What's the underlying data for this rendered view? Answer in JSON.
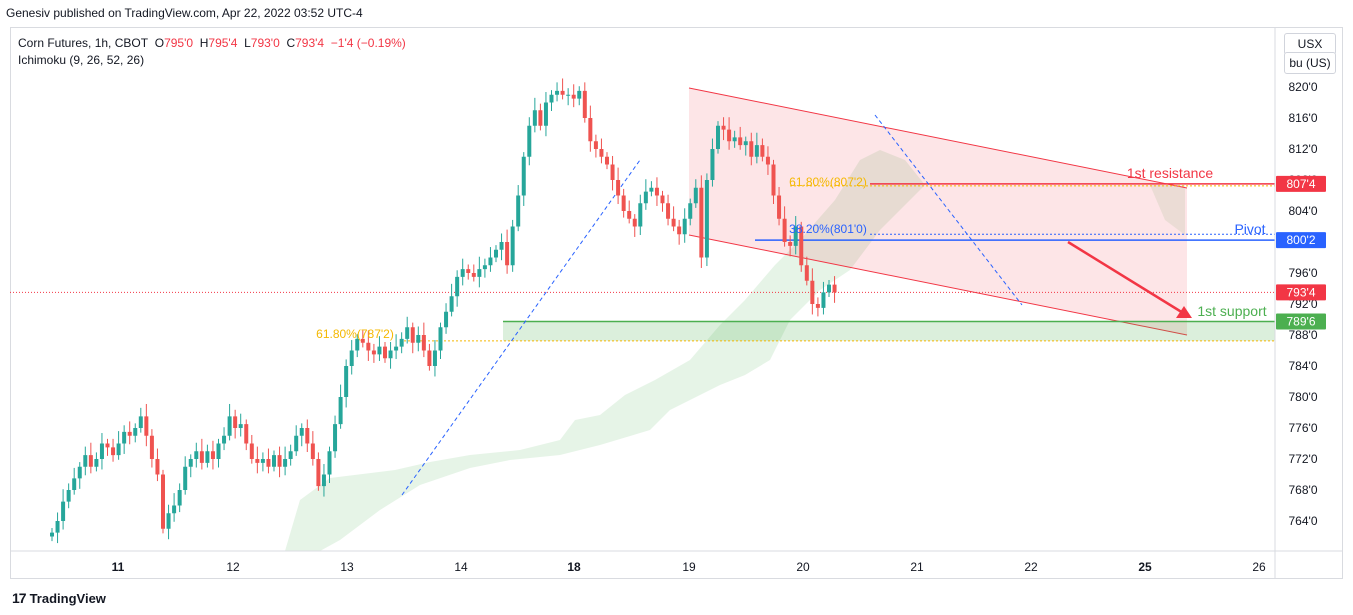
{
  "header": {
    "published": "Genesiv published on TradingView.com, Apr 22, 2022 03:52 UTC-4"
  },
  "legend": {
    "symbol": "Corn Futures, 1h, CBOT",
    "open_label": "O",
    "open": "795'0",
    "high_label": "H",
    "high": "795'4",
    "low_label": "L",
    "low": "793'0",
    "close_label": "C",
    "close": "793'4",
    "change": "−1'4 (−0.19%)",
    "indicator": "Ichimoku (9, 26, 52, 26)"
  },
  "currency": "USX",
  "unit": "bu (US)",
  "footer": {
    "brand": "TradingView",
    "logo": "17"
  },
  "colors": {
    "up": "#26a69a",
    "down": "#ef5350",
    "channel": "#f23645",
    "pivot": "#2962ff",
    "support": "#4caf50",
    "fib": "#f5b800",
    "cloud": "#c8e6c9"
  },
  "annotations": {
    "resistance_label": "1st resistance",
    "pivot_label": "Pivot",
    "support_label": "1st support",
    "fib_upper": "61.80%(807'2)",
    "fib_mid": "38.20%(801'0)",
    "fib_lower": "61.80%(787'2)"
  },
  "chart_data": {
    "type": "candlestick",
    "ylim": [
      761.5,
      822
    ],
    "y_ticks": [
      "820'0",
      "816'0",
      "812'0",
      "808'0",
      "804'0",
      "800'0",
      "796'0",
      "792'0",
      "788'0",
      "784'0",
      "780'0",
      "776'0",
      "772'0",
      "768'0",
      "764'0"
    ],
    "y_tick_values": [
      820,
      816,
      812,
      808,
      804,
      800,
      796,
      792,
      788,
      784,
      780,
      776,
      772,
      768,
      764
    ],
    "x_ticks": [
      "11",
      "12",
      "13",
      "14",
      "18",
      "19",
      "20",
      "21",
      "22",
      "25",
      "26"
    ],
    "x_tick_bold": [
      true,
      false,
      false,
      false,
      true,
      false,
      false,
      false,
      false,
      true,
      false
    ],
    "price_labels": [
      {
        "text": "807'4",
        "value": 807.5,
        "color": "#f23645"
      },
      {
        "text": "800'2",
        "value": 800.25,
        "color": "#2962ff"
      },
      {
        "text": "793'4",
        "value": 793.5,
        "color": "#f23645"
      },
      {
        "text": "789'6",
        "value": 789.75,
        "color": "#4caf50"
      }
    ],
    "levels": {
      "resistance": 807.5,
      "pivot": 800.25,
      "support": 789.75,
      "last": 793.5
    },
    "close_series": [
      762.5,
      764,
      766.5,
      768,
      769.5,
      771,
      772.5,
      771,
      772,
      774,
      773.5,
      772.5,
      774,
      775.5,
      775,
      776,
      777.5,
      775,
      772,
      770,
      763,
      765,
      766,
      768,
      771,
      772,
      773,
      771.5,
      773,
      772,
      774,
      775,
      777.5,
      776,
      776.5,
      774,
      772,
      771.5,
      772,
      771,
      772.5,
      771,
      772,
      773,
      775,
      776,
      774,
      772,
      768.5,
      770,
      773,
      776.5,
      780,
      784,
      786,
      787.5,
      787,
      786,
      785.5,
      786.5,
      785,
      786,
      786.5,
      787.5,
      789,
      787,
      788,
      786,
      784,
      786,
      789,
      791,
      793,
      795.5,
      796.5,
      796,
      795.5,
      796.5,
      797,
      798,
      799,
      800,
      797,
      802,
      806,
      811,
      815,
      817,
      815,
      818,
      819,
      819.5,
      819,
      819,
      818.5,
      819.5,
      816,
      813,
      812,
      811,
      810,
      808,
      806,
      804,
      803,
      802,
      805,
      806.5,
      807,
      806,
      805,
      803,
      802,
      801,
      803,
      805,
      807,
      798,
      808,
      812,
      815,
      814.5,
      813,
      813.5,
      812.5,
      813,
      811,
      812.5,
      811,
      810,
      806,
      803,
      800,
      799.5,
      802,
      797,
      795,
      792,
      791.5,
      793.5,
      794.5,
      793.5
    ]
  }
}
